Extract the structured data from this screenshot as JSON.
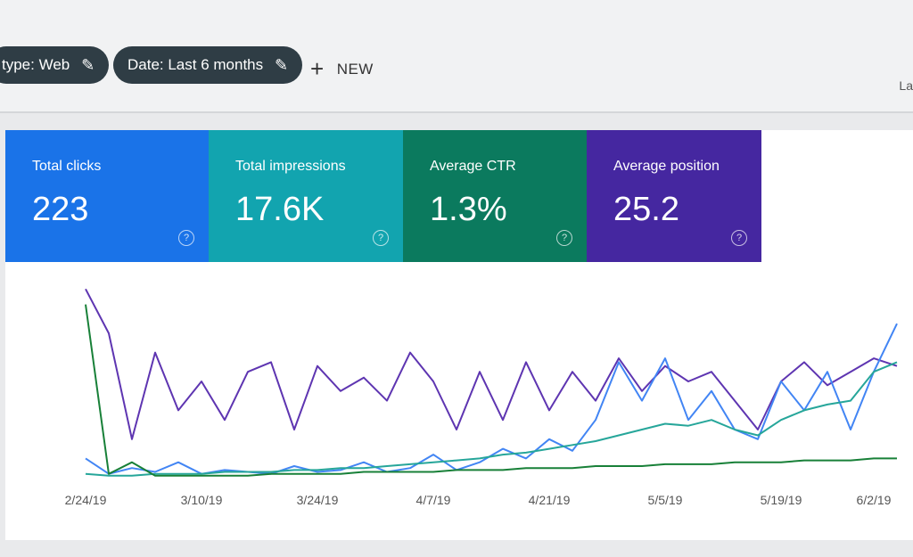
{
  "filters": [
    "type: Web",
    "Date: Last 6 months"
  ],
  "new_button": "NEW",
  "cut_label": "La",
  "metrics": [
    {
      "label": "Total clicks",
      "value": "223",
      "color": "#1a73e8"
    },
    {
      "label": "Total impressions",
      "value": "17.6K",
      "color": "#12a4af"
    },
    {
      "label": "Average CTR",
      "value": "1.3%",
      "color": "#0b7a5e"
    },
    {
      "label": "Average position",
      "value": "25.2",
      "color": "#4527a0"
    }
  ],
  "chart_data": {
    "type": "line",
    "categories": [
      "2/24/19",
      null,
      null,
      null,
      null,
      "3/10/19",
      null,
      null,
      null,
      null,
      "3/24/19",
      null,
      null,
      null,
      null,
      "4/7/19",
      null,
      null,
      null,
      null,
      "4/21/19",
      null,
      null,
      null,
      null,
      "5/5/19",
      null,
      null,
      null,
      null,
      "5/19/19",
      null,
      null,
      null,
      "6/2/19",
      null
    ],
    "ylim": [
      0,
      100
    ],
    "series": [
      {
        "color": "#5e35b1",
        "values": [
          98,
          75,
          20,
          65,
          35,
          50,
          30,
          55,
          60,
          25,
          58,
          45,
          52,
          40,
          65,
          50,
          25,
          55,
          30,
          60,
          35,
          55,
          40,
          62,
          45,
          58,
          50,
          55,
          40,
          25,
          50,
          60,
          48,
          55,
          62,
          58
        ]
      },
      {
        "color": "#4285f4",
        "values": [
          10,
          2,
          5,
          3,
          8,
          2,
          4,
          3,
          2,
          6,
          3,
          4,
          8,
          3,
          5,
          12,
          4,
          8,
          15,
          10,
          20,
          14,
          30,
          60,
          40,
          62,
          30,
          45,
          25,
          20,
          50,
          35,
          55,
          25,
          55,
          80
        ]
      },
      {
        "color": "#26a69a",
        "values": [
          2,
          1,
          1,
          2,
          2,
          2,
          3,
          3,
          3,
          4,
          4,
          5,
          5,
          6,
          7,
          8,
          9,
          10,
          12,
          13,
          15,
          17,
          19,
          22,
          25,
          28,
          27,
          30,
          25,
          22,
          30,
          35,
          38,
          40,
          55,
          60
        ]
      },
      {
        "color": "#188038",
        "values": [
          90,
          2,
          8,
          1,
          1,
          1,
          1,
          1,
          2,
          2,
          2,
          2,
          3,
          3,
          3,
          3,
          4,
          4,
          4,
          5,
          5,
          5,
          6,
          6,
          6,
          7,
          7,
          7,
          8,
          8,
          8,
          9,
          9,
          9,
          10,
          10
        ]
      }
    ]
  }
}
